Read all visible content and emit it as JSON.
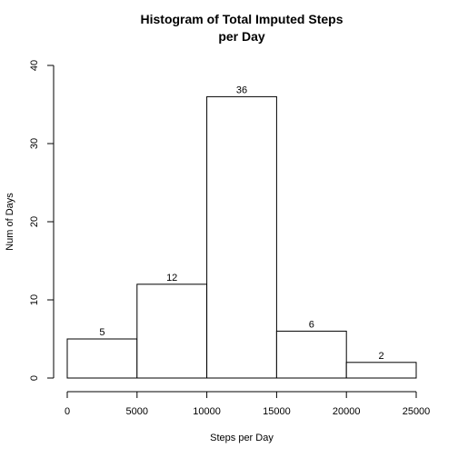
{
  "chart_data": {
    "type": "bar",
    "title_lines": [
      "Histogram of Total Imputed Steps",
      "per Day"
    ],
    "xlabel": "Steps per Day",
    "ylabel": "Num of Days",
    "bins": [
      {
        "from": 0,
        "to": 5000,
        "count": 5
      },
      {
        "from": 5000,
        "to": 10000,
        "count": 12
      },
      {
        "from": 10000,
        "to": 15000,
        "count": 36
      },
      {
        "from": 15000,
        "to": 20000,
        "count": 6
      },
      {
        "from": 20000,
        "to": 25000,
        "count": 2
      }
    ],
    "data_labels": [
      "5",
      "12",
      "36",
      "6",
      "2"
    ],
    "xlim": [
      0,
      25000
    ],
    "ylim": [
      0,
      40
    ],
    "xticks": [
      0,
      5000,
      10000,
      15000,
      20000,
      25000
    ],
    "xtick_labels": [
      "0",
      "5000",
      "10000",
      "15000",
      "20000",
      "25000"
    ],
    "yticks": [
      0,
      10,
      20,
      30,
      40
    ],
    "ytick_labels": [
      "0",
      "10",
      "20",
      "30",
      "40"
    ],
    "grid": false,
    "legend": "none",
    "bar_fill": "#ffffff",
    "bar_stroke": "#000000"
  }
}
